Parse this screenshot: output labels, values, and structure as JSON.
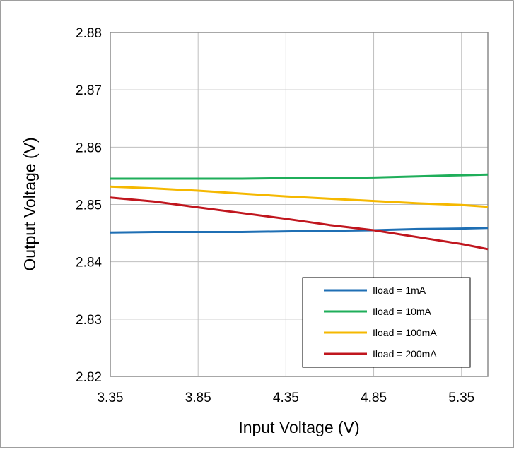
{
  "chart_data": {
    "type": "line",
    "title": "",
    "xlabel": "Input Voltage (V)",
    "ylabel": "Output Voltage (V)",
    "xlim": [
      3.35,
      5.5
    ],
    "ylim": [
      2.82,
      2.88
    ],
    "xticks": [
      3.35,
      3.85,
      4.35,
      4.85,
      5.35
    ],
    "xtick_labels": [
      "3.35",
      "3.85",
      "4.35",
      "4.85",
      "5.35"
    ],
    "yticks": [
      2.82,
      2.83,
      2.84,
      2.85,
      2.86,
      2.87,
      2.88
    ],
    "ytick_labels": [
      "2.82",
      "2.83",
      "2.84",
      "2.85",
      "2.86",
      "2.87",
      "2.88"
    ],
    "grid": true,
    "legend_position": "bottom-right",
    "series": [
      {
        "name": "Iload = 1mA",
        "color": "#1f6fb4",
        "x": [
          3.35,
          3.6,
          3.85,
          4.1,
          4.35,
          4.6,
          4.85,
          5.1,
          5.35,
          5.5
        ],
        "y": [
          2.8451,
          2.8452,
          2.8452,
          2.8452,
          2.8453,
          2.8454,
          2.8455,
          2.8457,
          2.8458,
          2.8459
        ]
      },
      {
        "name": "Iload = 10mA",
        "color": "#1fae5a",
        "x": [
          3.35,
          3.6,
          3.85,
          4.1,
          4.35,
          4.6,
          4.85,
          5.1,
          5.35,
          5.5
        ],
        "y": [
          2.8545,
          2.8545,
          2.8545,
          2.8545,
          2.8546,
          2.8546,
          2.8547,
          2.8549,
          2.8551,
          2.8552
        ]
      },
      {
        "name": "Iload = 100mA",
        "color": "#f5b800",
        "x": [
          3.35,
          3.6,
          3.85,
          4.1,
          4.35,
          4.6,
          4.85,
          5.1,
          5.35,
          5.5
        ],
        "y": [
          2.8531,
          2.8528,
          2.8524,
          2.8519,
          2.8514,
          2.851,
          2.8506,
          2.8502,
          2.8499,
          2.8496
        ]
      },
      {
        "name": "Iload = 200mA",
        "color": "#c0161e",
        "x": [
          3.35,
          3.6,
          3.85,
          4.1,
          4.35,
          4.6,
          4.85,
          5.1,
          5.35,
          5.5
        ],
        "y": [
          2.8512,
          2.8505,
          2.8495,
          2.8485,
          2.8475,
          2.8464,
          2.8455,
          2.8443,
          2.8431,
          2.8422
        ]
      }
    ]
  }
}
